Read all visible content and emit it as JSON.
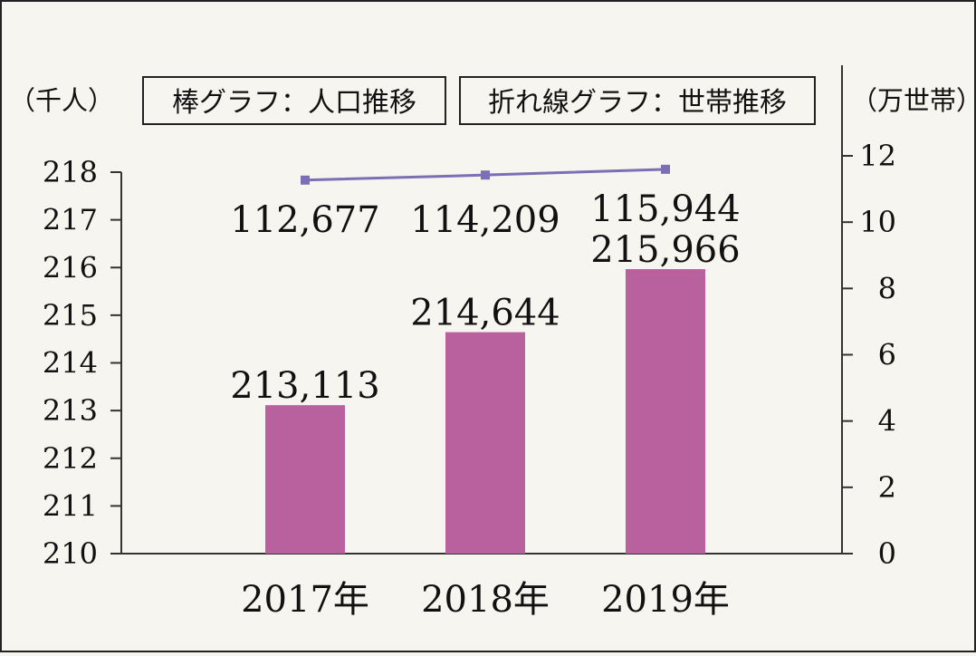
{
  "chart_data": {
    "type": "bar+line",
    "categories": [
      "2017年",
      "2018年",
      "2019年"
    ],
    "left_axis": {
      "unit_label": "（千人）",
      "ylim": [
        210,
        218
      ],
      "ticks": [
        210,
        211,
        212,
        213,
        214,
        215,
        216,
        217,
        218
      ]
    },
    "right_axis": {
      "unit_label": "（万世帯）",
      "ylim": [
        0,
        12
      ],
      "ticks": [
        0,
        2,
        4,
        6,
        8,
        10,
        12
      ]
    },
    "legend": {
      "bar_label": "棒グラフ：人口推移",
      "line_label": "折れ線グラフ：世帯推移",
      "placement": "top"
    },
    "series": [
      {
        "type": "bar",
        "axis": "left",
        "values": [
          213.113,
          214.644,
          215.966
        ],
        "value_labels": [
          "213,113",
          "214,644",
          "215,966"
        ],
        "color": "#b9609f"
      },
      {
        "type": "line",
        "axis": "right",
        "values": [
          11.2677,
          11.4209,
          11.5944
        ],
        "value_labels": [
          "112,677",
          "114,209",
          "115,944"
        ],
        "color": "#7b6fb5"
      }
    ],
    "grid": false
  }
}
